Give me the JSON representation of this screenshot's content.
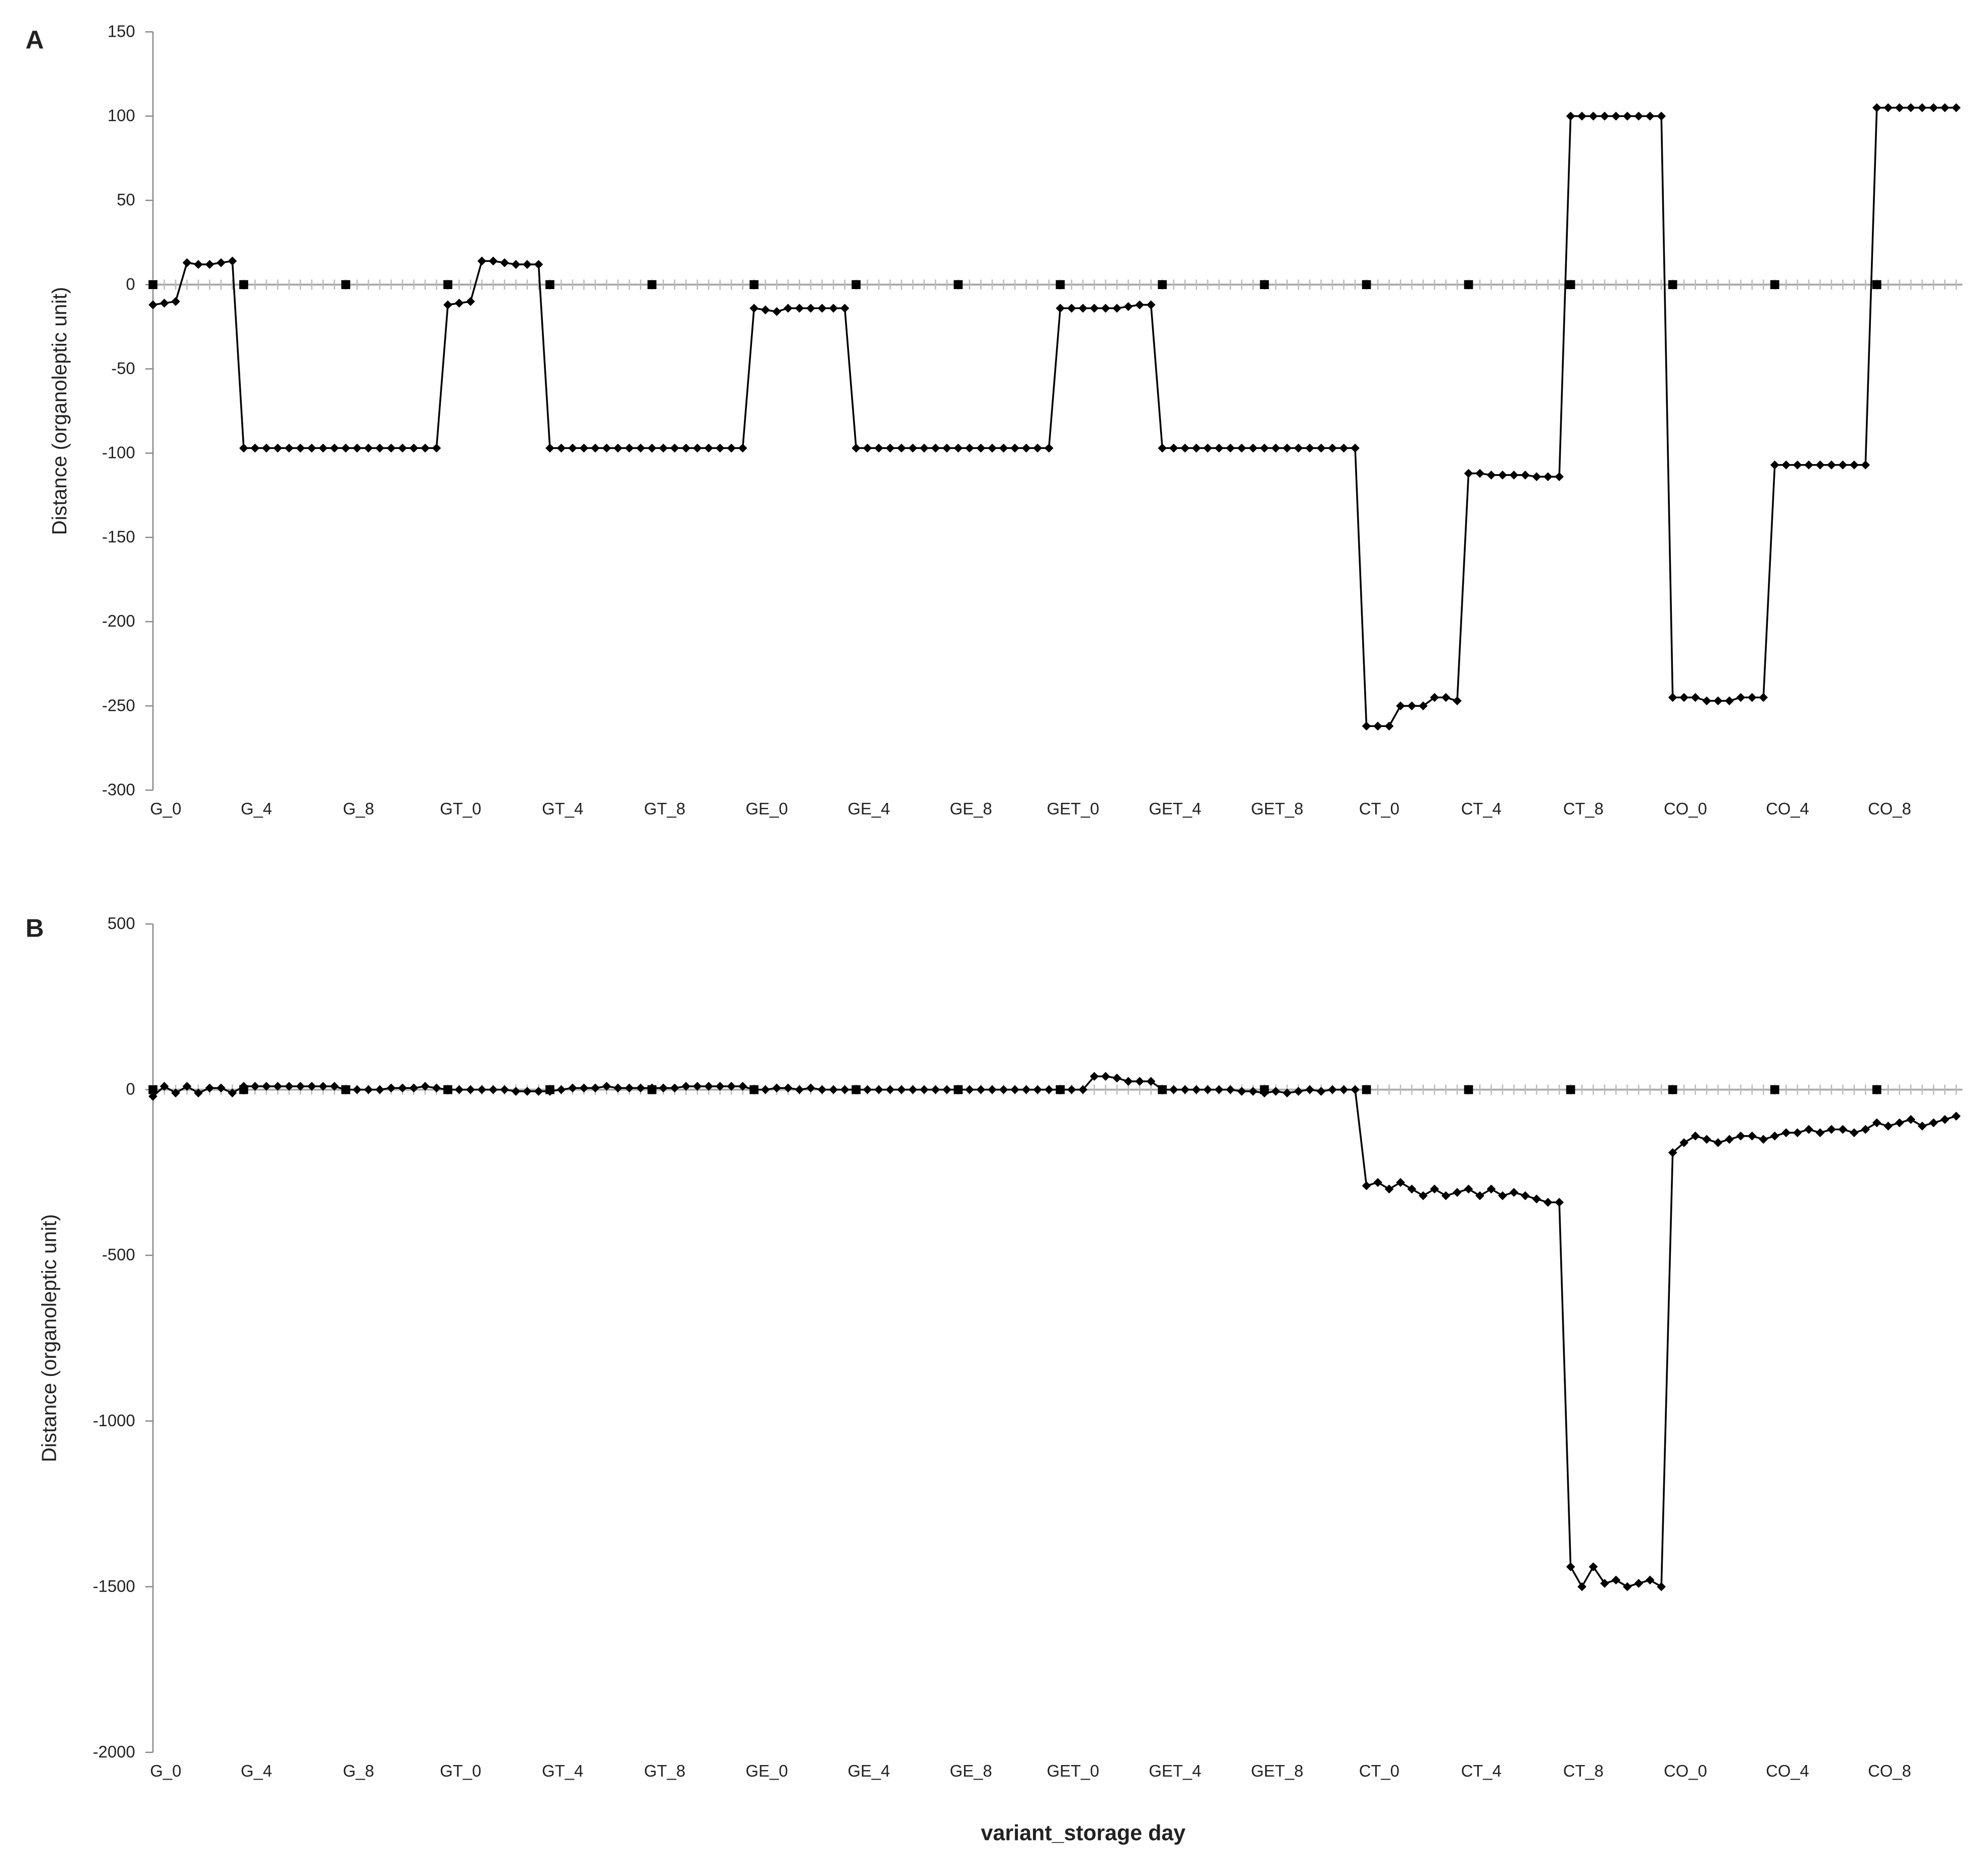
{
  "chart_data": [
    {
      "type": "line",
      "label": "A",
      "y_label": "Distance (organoleptic unit)",
      "categories": [
        "G_0",
        null,
        null,
        null,
        null,
        null,
        null,
        null,
        "G_4",
        null,
        null,
        null,
        null,
        null,
        null,
        null,
        null,
        "G_8",
        null,
        null,
        null,
        null,
        null,
        null,
        null,
        null,
        "GT_0",
        null,
        null,
        null,
        null,
        null,
        null,
        null,
        null,
        "GT_4",
        null,
        null,
        null,
        null,
        null,
        null,
        null,
        null,
        "GT_8",
        null,
        null,
        null,
        null,
        null,
        null,
        null,
        null,
        "GE_0",
        null,
        null,
        null,
        null,
        null,
        null,
        null,
        null,
        "GE_4",
        null,
        null,
        null,
        null,
        null,
        null,
        null,
        null,
        "GE_8",
        null,
        null,
        null,
        null,
        null,
        null,
        null,
        null,
        "GET_0",
        null,
        null,
        null,
        null,
        null,
        null,
        null,
        null,
        "GET_4",
        null,
        null,
        null,
        null,
        null,
        null,
        null,
        null,
        "GET_8",
        null,
        null,
        null,
        null,
        null,
        null,
        null,
        null,
        "CT_0",
        null,
        null,
        null,
        null,
        null,
        null,
        null,
        null,
        "CT_4",
        null,
        null,
        null,
        null,
        null,
        null,
        null,
        null,
        "CT_8",
        null,
        null,
        null,
        null,
        null,
        null,
        null,
        null,
        "CO_0",
        null,
        null,
        null,
        null,
        null,
        null,
        null,
        null,
        "CO_4",
        null,
        null,
        null,
        null,
        null,
        null,
        null,
        null,
        "CO_8",
        null,
        null,
        null,
        null,
        null,
        null,
        null
      ],
      "series": [
        {
          "color": "#000000",
          "marker": "diamond",
          "line": true,
          "values": [
            -12,
            -11,
            -10,
            13,
            12,
            12,
            13,
            14,
            -97,
            -97,
            -97,
            -97,
            -97,
            -97,
            -97,
            -97,
            -97,
            -97,
            -97,
            -97,
            -97,
            -97,
            -97,
            -97,
            -97,
            -97,
            -12,
            -11,
            -10,
            14,
            14,
            13,
            12,
            12,
            12,
            -97,
            -97,
            -97,
            -97,
            -97,
            -97,
            -97,
            -97,
            -97,
            -97,
            -97,
            -97,
            -97,
            -97,
            -97,
            -97,
            -97,
            -97,
            -14,
            -15,
            -16,
            -14,
            -14,
            -14,
            -14,
            -14,
            -14,
            -97,
            -97,
            -97,
            -97,
            -97,
            -97,
            -97,
            -97,
            -97,
            -97,
            -97,
            -97,
            -97,
            -97,
            -97,
            -97,
            -97,
            -97,
            -14,
            -14,
            -14,
            -14,
            -14,
            -14,
            -13,
            -12,
            -12,
            -97,
            -97,
            -97,
            -97,
            -97,
            -97,
            -97,
            -97,
            -97,
            -97,
            -97,
            -97,
            -97,
            -97,
            -97,
            -97,
            -97,
            -97,
            -262,
            -262,
            -262,
            -250,
            -250,
            -250,
            -245,
            -245,
            -247,
            -112,
            -112,
            -113,
            -113,
            -113,
            -113,
            -114,
            -114,
            -114,
            100,
            100,
            100,
            100,
            100,
            100,
            100,
            100,
            100,
            -245,
            -245,
            -245,
            -247,
            -247,
            -247,
            -245,
            -245,
            -245,
            -107,
            -107,
            -107,
            -107,
            -107,
            -107,
            -107,
            -107,
            -107,
            105,
            105,
            105,
            105,
            105,
            105,
            105,
            105
          ]
        },
        {
          "color": "#000000",
          "marker": "square",
          "line": false,
          "values": [
            0,
            null,
            null,
            null,
            null,
            null,
            null,
            null,
            0,
            null,
            null,
            null,
            null,
            null,
            null,
            null,
            null,
            0,
            null,
            null,
            null,
            null,
            null,
            null,
            null,
            null,
            0,
            null,
            null,
            null,
            null,
            null,
            null,
            null,
            null,
            0,
            null,
            null,
            null,
            null,
            null,
            null,
            null,
            null,
            0,
            null,
            null,
            null,
            null,
            null,
            null,
            null,
            null,
            0,
            null,
            null,
            null,
            null,
            null,
            null,
            null,
            null,
            0,
            null,
            null,
            null,
            null,
            null,
            null,
            null,
            null,
            0,
            null,
            null,
            null,
            null,
            null,
            null,
            null,
            null,
            0,
            null,
            null,
            null,
            null,
            null,
            null,
            null,
            null,
            0,
            null,
            null,
            null,
            null,
            null,
            null,
            null,
            null,
            0,
            null,
            null,
            null,
            null,
            null,
            null,
            null,
            null,
            0,
            null,
            null,
            null,
            null,
            null,
            null,
            null,
            null,
            0,
            null,
            null,
            null,
            null,
            null,
            null,
            null,
            null,
            0,
            null,
            null,
            null,
            null,
            null,
            null,
            null,
            null,
            0,
            null,
            null,
            null,
            null,
            null,
            null,
            null,
            null,
            0,
            null,
            null,
            null,
            null,
            null,
            null,
            null,
            null,
            0,
            null,
            null,
            null,
            null,
            null,
            null,
            null
          ]
        }
      ],
      "ylim": [
        -300,
        150
      ],
      "yticks": [
        -300,
        -250,
        -200,
        -150,
        -100,
        -50,
        0,
        50,
        100,
        150
      ]
    },
    {
      "type": "line",
      "label": "B",
      "y_label": "Distance (organoleptic unit)",
      "x_label": "variant_storage day",
      "categories": [
        "G_0",
        null,
        null,
        null,
        null,
        null,
        null,
        null,
        "G_4",
        null,
        null,
        null,
        null,
        null,
        null,
        null,
        null,
        "G_8",
        null,
        null,
        null,
        null,
        null,
        null,
        null,
        null,
        "GT_0",
        null,
        null,
        null,
        null,
        null,
        null,
        null,
        null,
        "GT_4",
        null,
        null,
        null,
        null,
        null,
        null,
        null,
        null,
        "GT_8",
        null,
        null,
        null,
        null,
        null,
        null,
        null,
        null,
        "GE_0",
        null,
        null,
        null,
        null,
        null,
        null,
        null,
        null,
        "GE_4",
        null,
        null,
        null,
        null,
        null,
        null,
        null,
        null,
        "GE_8",
        null,
        null,
        null,
        null,
        null,
        null,
        null,
        null,
        "GET_0",
        null,
        null,
        null,
        null,
        null,
        null,
        null,
        null,
        "GET_4",
        null,
        null,
        null,
        null,
        null,
        null,
        null,
        null,
        "GET_8",
        null,
        null,
        null,
        null,
        null,
        null,
        null,
        null,
        "CT_0",
        null,
        null,
        null,
        null,
        null,
        null,
        null,
        null,
        "CT_4",
        null,
        null,
        null,
        null,
        null,
        null,
        null,
        null,
        "CT_8",
        null,
        null,
        null,
        null,
        null,
        null,
        null,
        null,
        "CO_0",
        null,
        null,
        null,
        null,
        null,
        null,
        null,
        null,
        "CO_4",
        null,
        null,
        null,
        null,
        null,
        null,
        null,
        null,
        "CO_8",
        null,
        null,
        null,
        null,
        null,
        null,
        null
      ],
      "series": [
        {
          "color": "#000000",
          "marker": "diamond",
          "line": true,
          "values": [
            -20,
            10,
            -10,
            10,
            -10,
            5,
            5,
            -10,
            10,
            10,
            10,
            10,
            10,
            10,
            10,
            10,
            10,
            0,
            0,
            0,
            0,
            5,
            5,
            5,
            10,
            5,
            0,
            0,
            0,
            0,
            0,
            0,
            -5,
            -5,
            -5,
            -5,
            0,
            5,
            5,
            5,
            10,
            5,
            5,
            5,
            5,
            5,
            5,
            10,
            10,
            10,
            10,
            10,
            10,
            0,
            0,
            5,
            5,
            0,
            5,
            0,
            0,
            0,
            0,
            0,
            0,
            0,
            0,
            0,
            0,
            0,
            0,
            0,
            0,
            0,
            0,
            0,
            0,
            0,
            0,
            0,
            0,
            0,
            0,
            40,
            40,
            35,
            25,
            25,
            25,
            0,
            0,
            0,
            0,
            0,
            0,
            0,
            -5,
            -5,
            -10,
            -5,
            -10,
            -5,
            0,
            -5,
            0,
            0,
            0,
            -290,
            -280,
            -300,
            -280,
            -300,
            -320,
            -300,
            -320,
            -310,
            -300,
            -320,
            -300,
            -320,
            -310,
            -320,
            -330,
            -340,
            -340,
            -1440,
            -1500,
            -1440,
            -1490,
            -1480,
            -1500,
            -1490,
            -1480,
            -1500,
            -190,
            -160,
            -140,
            -150,
            -160,
            -150,
            -140,
            -140,
            -150,
            -140,
            -130,
            -130,
            -120,
            -130,
            -120,
            -120,
            -130,
            -120,
            -100,
            -110,
            -100,
            -90,
            -110,
            -100,
            -90,
            -80
          ]
        },
        {
          "color": "#000000",
          "marker": "square",
          "line": false,
          "values": [
            0,
            null,
            null,
            null,
            null,
            null,
            null,
            null,
            0,
            null,
            null,
            null,
            null,
            null,
            null,
            null,
            null,
            0,
            null,
            null,
            null,
            null,
            null,
            null,
            null,
            null,
            0,
            null,
            null,
            null,
            null,
            null,
            null,
            null,
            null,
            0,
            null,
            null,
            null,
            null,
            null,
            null,
            null,
            null,
            0,
            null,
            null,
            null,
            null,
            null,
            null,
            null,
            null,
            0,
            null,
            null,
            null,
            null,
            null,
            null,
            null,
            null,
            0,
            null,
            null,
            null,
            null,
            null,
            null,
            null,
            null,
            0,
            null,
            null,
            null,
            null,
            null,
            null,
            null,
            null,
            0,
            null,
            null,
            null,
            null,
            null,
            null,
            null,
            null,
            0,
            null,
            null,
            null,
            null,
            null,
            null,
            null,
            null,
            0,
            null,
            null,
            null,
            null,
            null,
            null,
            null,
            null,
            0,
            null,
            null,
            null,
            null,
            null,
            null,
            null,
            null,
            0,
            null,
            null,
            null,
            null,
            null,
            null,
            null,
            null,
            0,
            null,
            null,
            null,
            null,
            null,
            null,
            null,
            null,
            0,
            null,
            null,
            null,
            null,
            null,
            null,
            null,
            null,
            0,
            null,
            null,
            null,
            null,
            null,
            null,
            null,
            null,
            0,
            null,
            null,
            null,
            null,
            null,
            null,
            null
          ]
        }
      ],
      "ylim": [
        -2000,
        500
      ],
      "yticks": [
        -2000,
        -1500,
        -1000,
        -500,
        0,
        500
      ]
    }
  ]
}
